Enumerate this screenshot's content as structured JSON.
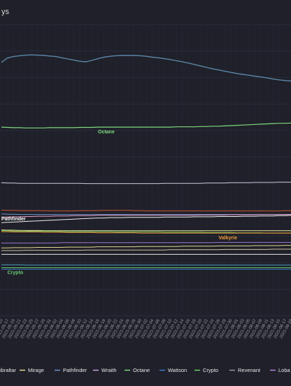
{
  "title": "ys",
  "chart_data": {
    "type": "line",
    "title": "ys",
    "xlabel": "",
    "ylabel": "",
    "x": [
      "2021-05-15",
      "2021-05-17",
      "2021-05-19",
      "2021-05-21",
      "2021-05-23",
      "2021-05-25",
      "2021-05-27",
      "2021-05-29",
      "2021-05-31",
      "2021-06-02",
      "2021-06-04",
      "2021-06-06",
      "2021-06-08",
      "2021-06-10",
      "2021-06-12",
      "2021-06-14",
      "2021-06-16",
      "2021-06-18",
      "2021-06-20",
      "2021-06-22",
      "2021-06-24",
      "2021-06-26",
      "2021-06-28",
      "2021-06-30",
      "2021-07-02",
      "2021-07-04",
      "2021-07-06",
      "2021-07-08",
      "2021-07-10",
      "2021-07-12",
      "2021-07-14",
      "2021-07-16",
      "2021-07-18",
      "2021-07-20",
      "2021-07-22",
      "2021-07-24",
      "2021-07-26",
      "2021-07-28",
      "2021-07-30",
      "2021-08-01",
      "2021-08-03",
      "2021-08-05",
      "2021-08-07",
      "2021-08-09",
      "2021-08-11",
      "2021-08-13",
      "2021-08-15",
      "2021-08-17",
      "2021-08-19"
    ],
    "x_tick_labels": [
      "2021-05-15",
      "2021-05-17",
      "2021-05-19",
      "2021-05-21",
      "2021-05-23",
      "2021-05-25",
      "2021-05-27",
      "2021-05-29",
      "2021-05-31",
      "2021-06-02",
      "2021-06-04",
      "2021-06-06",
      "2021-06-08",
      "2021-06-10",
      "2021-06-12",
      "2021-06-14",
      "2021-06-16",
      "2021-06-18",
      "2021-06-20",
      "2021-06-22",
      "2021-06-24",
      "2021-06-26",
      "2021-06-28",
      "2021-06-30",
      "2021-07-02",
      "2021-07-04",
      "2021-07-06",
      "2021-07-08",
      "2021-07-10",
      "2021-07-12",
      "2021-07-14",
      "2021-07-16",
      "2021-07-18",
      "2021-07-20",
      "2021-07-22",
      "2021-07-24",
      "2021-07-26",
      "2021-07-28",
      "2021-07-30",
      "2021-08-01",
      "2021-08-03",
      "2021-08-05",
      "2021-08-07",
      "2021-08-09",
      "2021-08-11",
      "2021-08-13",
      "2021-08-15",
      "2021-08-17",
      "2021-08-19"
    ],
    "y_axis_labels_visible": false,
    "ylim": [
      0,
      100
    ],
    "grid": true,
    "legend_position": "bottom",
    "legend": [
      "Gibraltar",
      "Mirage",
      "Pathfinder",
      "Wraith",
      "Octane",
      "Wattson",
      "Crypto",
      "Revenant",
      "Loba"
    ],
    "legend_visible": [
      "ibraltar",
      "Mirage",
      "Pathfinder",
      "Wraith",
      "Octane",
      "Wattson",
      "Crypto",
      "Revenant",
      "Loba"
    ],
    "end_labels": [
      "Octane",
      "Pathfinder",
      "Valkyrie",
      "Crypto"
    ],
    "series": [
      {
        "name": "",
        "color": "#5b86a8",
        "width": 1.4,
        "values": [
          87.0,
          88.5,
          89.0,
          89.3,
          89.5,
          89.6,
          89.5,
          89.4,
          89.2,
          89.0,
          88.6,
          88.2,
          87.8,
          87.4,
          87.2,
          87.7,
          88.3,
          88.8,
          89.1,
          89.3,
          89.4,
          89.4,
          89.4,
          89.3,
          89.1,
          88.8,
          88.6,
          88.3,
          88.0,
          87.6,
          87.2,
          86.8,
          86.3,
          85.8,
          85.3,
          84.8,
          84.4,
          84.0,
          83.6,
          83.2,
          82.9,
          82.6,
          82.3,
          82.0,
          81.7,
          81.3,
          81.0,
          80.8,
          80.6
        ]
      },
      {
        "name": "Octane",
        "color": "#7fd97f",
        "width": 1.2,
        "values": [
          64.8,
          64.7,
          64.6,
          64.6,
          64.5,
          64.5,
          64.5,
          64.5,
          64.6,
          64.6,
          64.6,
          64.6,
          64.6,
          64.7,
          64.7,
          64.7,
          64.8,
          64.8,
          64.8,
          64.8,
          64.8,
          64.8,
          64.8,
          64.8,
          64.8,
          64.8,
          64.8,
          64.8,
          64.8,
          64.9,
          64.9,
          64.9,
          64.9,
          65.0,
          65.0,
          65.1,
          65.1,
          65.2,
          65.3,
          65.4,
          65.5,
          65.6,
          65.7,
          65.8,
          65.9,
          66.0,
          66.1,
          66.1,
          66.2
        ]
      },
      {
        "name": "",
        "color": "#c8c8d8",
        "width": 1.0,
        "values": [
          45.7,
          45.6,
          45.6,
          45.5,
          45.5,
          45.5,
          45.5,
          45.5,
          45.5,
          45.5,
          45.5,
          45.5,
          45.5,
          45.5,
          45.4,
          45.4,
          45.4,
          45.4,
          45.4,
          45.4,
          45.4,
          45.4,
          45.4,
          45.4,
          45.4,
          45.4,
          45.4,
          45.5,
          45.5,
          45.5,
          45.5,
          45.5,
          45.5,
          45.5,
          45.6,
          45.6,
          45.6,
          45.6,
          45.7,
          45.7,
          45.7,
          45.7,
          45.8,
          45.8,
          45.8,
          45.8,
          45.9,
          45.9,
          45.9
        ]
      },
      {
        "name": "",
        "color": "#c8502a",
        "width": 1.0,
        "values": [
          36.3,
          36.2,
          36.2,
          36.1,
          36.1,
          36.1,
          36.1,
          36.1,
          36.0,
          36.0,
          36.0,
          36.0,
          36.0,
          36.1,
          36.1,
          36.1,
          36.1,
          36.2,
          36.2,
          36.2,
          36.2,
          36.2,
          36.1,
          36.1,
          36.0,
          36.0,
          36.0,
          36.0,
          36.0,
          36.0,
          36.0,
          36.0,
          36.0,
          36.0,
          36.0,
          36.0,
          36.0,
          36.0,
          36.0,
          36.0,
          36.0,
          36.0,
          36.0,
          36.0,
          36.0,
          36.0,
          36.0,
          36.1,
          36.1
        ]
      },
      {
        "name": "Pathfinder",
        "color": "#6a92cc",
        "width": 1.0,
        "values": [
          35.0,
          34.9,
          34.9,
          34.8,
          34.8,
          34.8,
          34.8,
          34.8,
          34.8,
          34.8,
          34.8,
          34.8,
          34.8,
          34.8,
          34.8,
          34.8,
          34.8,
          34.8,
          34.8,
          34.8,
          34.8,
          34.8,
          34.8,
          34.8,
          34.8,
          34.8,
          34.8,
          34.8,
          34.8,
          34.8,
          34.8,
          34.8,
          34.8,
          34.8,
          34.8,
          34.8,
          34.8,
          34.8,
          34.8,
          34.8,
          34.8,
          34.8,
          34.8,
          34.8,
          34.8,
          34.8,
          34.8,
          34.8,
          34.8
        ]
      },
      {
        "name": "",
        "color": "#e8a0c8",
        "width": 1.0,
        "values": [
          33.9,
          33.9,
          34.0,
          34.0,
          34.1,
          34.1,
          34.2,
          34.2,
          34.2,
          34.3,
          34.3,
          34.3,
          34.4,
          34.4,
          34.4,
          34.4,
          34.5,
          34.5,
          34.5,
          34.5,
          34.5,
          34.5,
          34.5,
          34.5,
          34.5,
          34.5,
          34.5,
          34.5,
          34.5,
          34.5,
          34.5,
          34.5,
          34.5,
          34.6,
          34.6,
          34.6,
          34.6,
          34.6,
          34.7,
          34.7,
          34.7,
          34.7,
          34.7,
          34.8,
          34.8,
          34.8,
          34.8,
          34.8,
          34.8
        ]
      },
      {
        "name": "",
        "color": "#f0f0f0",
        "width": 1.0,
        "values": [
          32.0,
          32.1,
          32.2,
          32.3,
          32.4,
          32.5,
          32.6,
          32.7,
          32.8,
          32.9,
          33.0,
          33.1,
          33.2,
          33.3,
          33.4,
          33.5,
          33.6,
          33.6,
          33.7,
          33.7,
          33.7,
          33.8,
          33.8,
          33.8,
          33.8,
          33.8,
          33.8,
          33.9,
          33.9,
          33.9,
          33.9,
          33.9,
          34.0,
          34.0,
          34.0,
          34.0,
          34.1,
          34.1,
          34.1,
          34.1,
          34.2,
          34.2,
          34.2,
          34.3,
          34.3,
          34.3,
          34.4,
          34.4,
          34.5
        ]
      },
      {
        "name": "",
        "color": "#ecec9a",
        "width": 1.0,
        "values": [
          29.5,
          29.4,
          29.4,
          29.3,
          29.3,
          29.3,
          29.3,
          29.2,
          29.2,
          29.2,
          29.2,
          29.2,
          29.2,
          29.2,
          29.2,
          29.2,
          29.2,
          29.2,
          29.2,
          29.2,
          29.2,
          29.2,
          29.2,
          29.2,
          29.2,
          29.2,
          29.2,
          29.2,
          29.2,
          29.2,
          29.2,
          29.2,
          29.2,
          29.2,
          29.2,
          29.2,
          29.2,
          29.2,
          29.2,
          29.2,
          29.2,
          29.2,
          29.2,
          29.2,
          29.2,
          29.2,
          29.2,
          29.2,
          29.2
        ]
      },
      {
        "name": "",
        "color": "#6ec060",
        "width": 1.0,
        "values": [
          29.2,
          29.2,
          29.1,
          29.1,
          29.1,
          29.0,
          29.0,
          29.0,
          29.0,
          29.0,
          28.9,
          28.9,
          28.9,
          28.9,
          28.9,
          28.9,
          28.9,
          28.9,
          28.9,
          28.8,
          28.8,
          28.8,
          28.8,
          28.8,
          28.8,
          28.8,
          28.8,
          28.7,
          28.7,
          28.7,
          28.7,
          28.7,
          28.7,
          28.7,
          28.6,
          28.6,
          28.6,
          28.6,
          28.6,
          28.5,
          28.5,
          28.5,
          28.5,
          28.5,
          28.4,
          28.4,
          28.4,
          28.4,
          28.4
        ]
      },
      {
        "name": "Valkyrie",
        "color": "#f29a38",
        "width": 1.0,
        "values": [
          28.9,
          28.9,
          28.8,
          28.8,
          28.8,
          28.8,
          28.8,
          28.7,
          28.7,
          28.7,
          28.7,
          28.6,
          28.6,
          28.6,
          28.6,
          28.6,
          28.5,
          28.5,
          28.5,
          28.5,
          28.5,
          28.5,
          28.5,
          28.4,
          28.4,
          28.4,
          28.4,
          28.4,
          28.4,
          28.4,
          28.4,
          28.4,
          28.4,
          28.4,
          28.4,
          28.4,
          28.4,
          28.4,
          28.4,
          28.4,
          28.4,
          28.4,
          28.4,
          28.4,
          28.4,
          28.4,
          28.4,
          28.4,
          28.4
        ]
      },
      {
        "name": "",
        "color": "#9a78d0",
        "width": 1.0,
        "values": [
          25.0,
          25.0,
          25.0,
          25.0,
          25.0,
          25.0,
          25.0,
          25.0,
          25.0,
          25.0,
          25.1,
          25.1,
          25.1,
          25.1,
          25.1,
          25.1,
          25.1,
          25.1,
          25.1,
          25.1,
          25.1,
          25.1,
          25.1,
          25.1,
          25.1,
          25.1,
          25.1,
          25.1,
          25.1,
          25.1,
          25.1,
          25.1,
          25.1,
          25.1,
          25.1,
          25.1,
          25.2,
          25.2,
          25.2,
          25.2,
          25.2,
          25.2,
          25.2,
          25.2,
          25.2,
          25.2,
          25.2,
          25.2,
          25.2
        ]
      },
      {
        "name": "",
        "color": "#e0d890",
        "width": 1.0,
        "values": [
          23.3,
          23.3,
          23.4,
          23.4,
          23.4,
          23.4,
          23.5,
          23.5,
          23.5,
          23.5,
          23.5,
          23.6,
          23.6,
          23.6,
          23.6,
          23.6,
          23.7,
          23.7,
          23.7,
          23.7,
          23.7,
          23.7,
          23.7,
          23.8,
          23.8,
          23.8,
          23.8,
          23.8,
          23.8,
          23.8,
          23.9,
          23.9,
          23.9,
          23.9,
          23.9,
          23.9,
          24.0,
          24.0,
          24.0,
          24.0,
          24.0,
          24.0,
          24.1,
          24.1,
          24.1,
          24.1,
          24.1,
          24.2,
          24.2
        ]
      },
      {
        "name": "",
        "color": "#d0c0a0",
        "width": 1.0,
        "values": [
          22.4,
          22.4,
          22.4,
          22.4,
          22.5,
          22.5,
          22.5,
          22.5,
          22.5,
          22.5,
          22.5,
          22.5,
          22.5,
          22.5,
          22.6,
          22.6,
          22.6,
          22.6,
          22.6,
          22.6,
          22.6,
          22.6,
          22.6,
          22.6,
          22.6,
          22.6,
          22.6,
          22.6,
          22.7,
          22.7,
          22.7,
          22.7,
          22.7,
          22.7,
          22.7,
          22.7,
          22.7,
          22.8,
          22.8,
          22.8,
          22.8,
          22.8,
          22.8,
          22.8,
          22.8,
          22.9,
          22.9,
          22.9,
          22.9
        ]
      },
      {
        "name": "",
        "color": "#e8e8e8",
        "width": 1.0,
        "values": [
          21.1,
          21.1,
          21.1,
          21.1,
          21.1,
          21.1,
          21.1,
          21.1,
          21.1,
          21.1,
          21.1,
          21.1,
          21.1,
          21.1,
          21.1,
          21.1,
          21.1,
          21.1,
          21.1,
          21.1,
          21.1,
          21.1,
          21.1,
          21.1,
          21.1,
          21.1,
          21.1,
          21.1,
          21.1,
          21.1,
          21.1,
          21.1,
          21.1,
          21.1,
          21.1,
          21.1,
          21.1,
          21.1,
          21.1,
          21.1,
          21.1,
          21.1,
          21.1,
          21.1,
          21.1,
          21.1,
          21.1,
          21.1,
          21.1
        ]
      },
      {
        "name": "",
        "color": "#4aa0c0",
        "width": 1.0,
        "values": [
          17.5,
          17.5,
          17.5,
          17.5,
          17.4,
          17.4,
          17.4,
          17.4,
          17.4,
          17.4,
          17.4,
          17.4,
          17.4,
          17.4,
          17.4,
          17.4,
          17.4,
          17.4,
          17.4,
          17.4,
          17.4,
          17.4,
          17.4,
          17.4,
          17.4,
          17.4,
          17.4,
          17.4,
          17.4,
          17.4,
          17.4,
          17.4,
          17.4,
          17.4,
          17.4,
          17.4,
          17.4,
          17.4,
          17.4,
          17.4,
          17.4,
          17.4,
          17.4,
          17.4,
          17.4,
          17.4,
          17.4,
          17.4,
          17.4
        ]
      },
      {
        "name": "Crypto",
        "color": "#6bcc70",
        "width": 1.0,
        "values": [
          16.5,
          16.5,
          16.5,
          16.5,
          16.5,
          16.5,
          16.5,
          16.5,
          16.5,
          16.5,
          16.5,
          16.5,
          16.5,
          16.5,
          16.5,
          16.5,
          16.5,
          16.5,
          16.5,
          16.5,
          16.5,
          16.5,
          16.5,
          16.5,
          16.5,
          16.5,
          16.5,
          16.5,
          16.5,
          16.5,
          16.5,
          16.5,
          16.5,
          16.5,
          16.5,
          16.5,
          16.5,
          16.5,
          16.5,
          16.5,
          16.5,
          16.5,
          16.5,
          16.5,
          16.5,
          16.5,
          16.5,
          16.5,
          16.5
        ]
      },
      {
        "name": "",
        "color": "#3a7ac8",
        "width": 1.0,
        "values": [
          16.0,
          16.0,
          16.0,
          16.0,
          16.0,
          16.0,
          16.0,
          16.0,
          16.0,
          16.0,
          16.0,
          16.0,
          16.0,
          16.0,
          16.0,
          16.0,
          16.0,
          16.0,
          16.0,
          16.0,
          16.0,
          16.0,
          16.0,
          16.0,
          16.0,
          16.0,
          16.0,
          16.0,
          16.0,
          16.0,
          16.0,
          16.0,
          16.0,
          16.0,
          16.0,
          16.0,
          16.0,
          16.0,
          16.0,
          16.0,
          16.0,
          16.0,
          16.0,
          16.0,
          16.0,
          16.0,
          16.0,
          16.0,
          16.0
        ]
      }
    ],
    "legend_items": [
      {
        "label": "ibraltar",
        "color": "#6a92cc"
      },
      {
        "label": "Mirage",
        "color": "#e0d890"
      },
      {
        "label": "Pathfinder",
        "color": "#6a92cc"
      },
      {
        "label": "Wraith",
        "color": "#c8a0e8"
      },
      {
        "label": "Octane",
        "color": "#7fd97f"
      },
      {
        "label": "Wattson",
        "color": "#3a7ac8"
      },
      {
        "label": "Crypto",
        "color": "#6bcc70"
      },
      {
        "label": "Revenant",
        "color": "#9a9a9a"
      },
      {
        "label": "Loba",
        "color": "#b080e0"
      }
    ],
    "end_label_items": [
      {
        "text": "Octane",
        "color": "#7fd97f",
        "series": 1,
        "at": 16
      },
      {
        "text": "Pathfinder",
        "color": "#ffffff",
        "series": 4,
        "at": 0
      },
      {
        "text": "Valkyrie",
        "color": "#f29a38",
        "series": 9,
        "at": 36
      },
      {
        "text": "Crypto",
        "color": "#6bcc70",
        "series": 15,
        "at": 1
      }
    ]
  }
}
